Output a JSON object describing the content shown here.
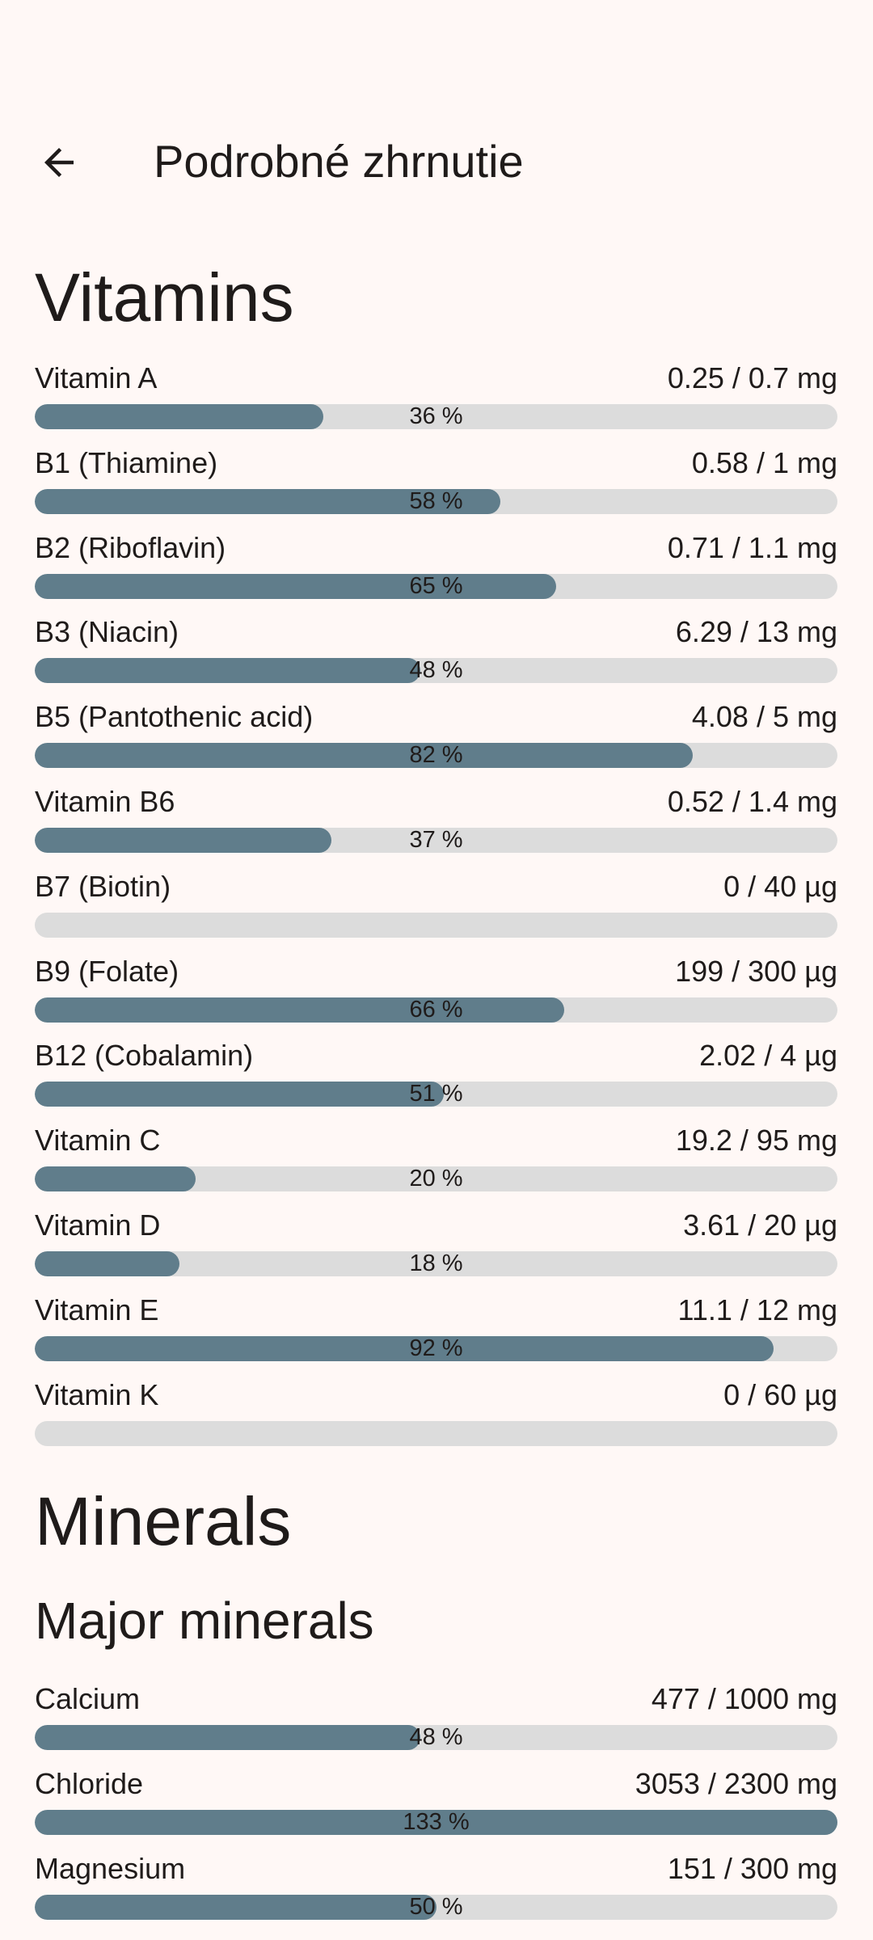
{
  "header": {
    "title": "Podrobné zhrnutie"
  },
  "sections": [
    {
      "title": "Vitamins",
      "items": [
        {
          "name": "Vitamin A",
          "amount": "0.25 / 0.7 mg",
          "percent": 36,
          "percent_label": "36 %"
        },
        {
          "name": "B1 (Thiamine)",
          "amount": "0.58 / 1 mg",
          "percent": 58,
          "percent_label": "58 %"
        },
        {
          "name": "B2 (Riboflavin)",
          "amount": "0.71 / 1.1 mg",
          "percent": 65,
          "percent_label": "65 %"
        },
        {
          "name": "B3 (Niacin)",
          "amount": "6.29 / 13 mg",
          "percent": 48,
          "percent_label": "48 %"
        },
        {
          "name": "B5 (Pantothenic acid)",
          "amount": "4.08 / 5 mg",
          "percent": 82,
          "percent_label": "82 %"
        },
        {
          "name": "Vitamin B6",
          "amount": "0.52 / 1.4 mg",
          "percent": 37,
          "percent_label": "37 %"
        },
        {
          "name": "B7 (Biotin)",
          "amount": "0 / 40 µg",
          "percent": 0
        },
        {
          "name": "B9 (Folate)",
          "amount": "199 / 300 µg",
          "percent": 66,
          "percent_label": "66 %"
        },
        {
          "name": "B12 (Cobalamin)",
          "amount": "2.02 / 4 µg",
          "percent": 51,
          "percent_label": "51 %"
        },
        {
          "name": "Vitamin C",
          "amount": "19.2 / 95 mg",
          "percent": 20,
          "percent_label": "20 %"
        },
        {
          "name": "Vitamin D",
          "amount": "3.61 / 20 µg",
          "percent": 18,
          "percent_label": "18 %"
        },
        {
          "name": "Vitamin E",
          "amount": "11.1 / 12 mg",
          "percent": 92,
          "percent_label": "92 %"
        },
        {
          "name": "Vitamin K",
          "amount": "0 / 60 µg",
          "percent": 0
        }
      ]
    },
    {
      "title": "Minerals",
      "subtitle": "Major minerals",
      "items": [
        {
          "name": "Calcium",
          "amount": "477 / 1000 mg",
          "percent": 48,
          "percent_label": "48 %"
        },
        {
          "name": "Chloride",
          "amount": "3053 / 2300 mg",
          "percent": 133,
          "percent_label": "133 %"
        },
        {
          "name": "Magnesium",
          "amount": "151 / 300 mg",
          "percent": 50,
          "percent_label": "50 %"
        }
      ]
    }
  ]
}
